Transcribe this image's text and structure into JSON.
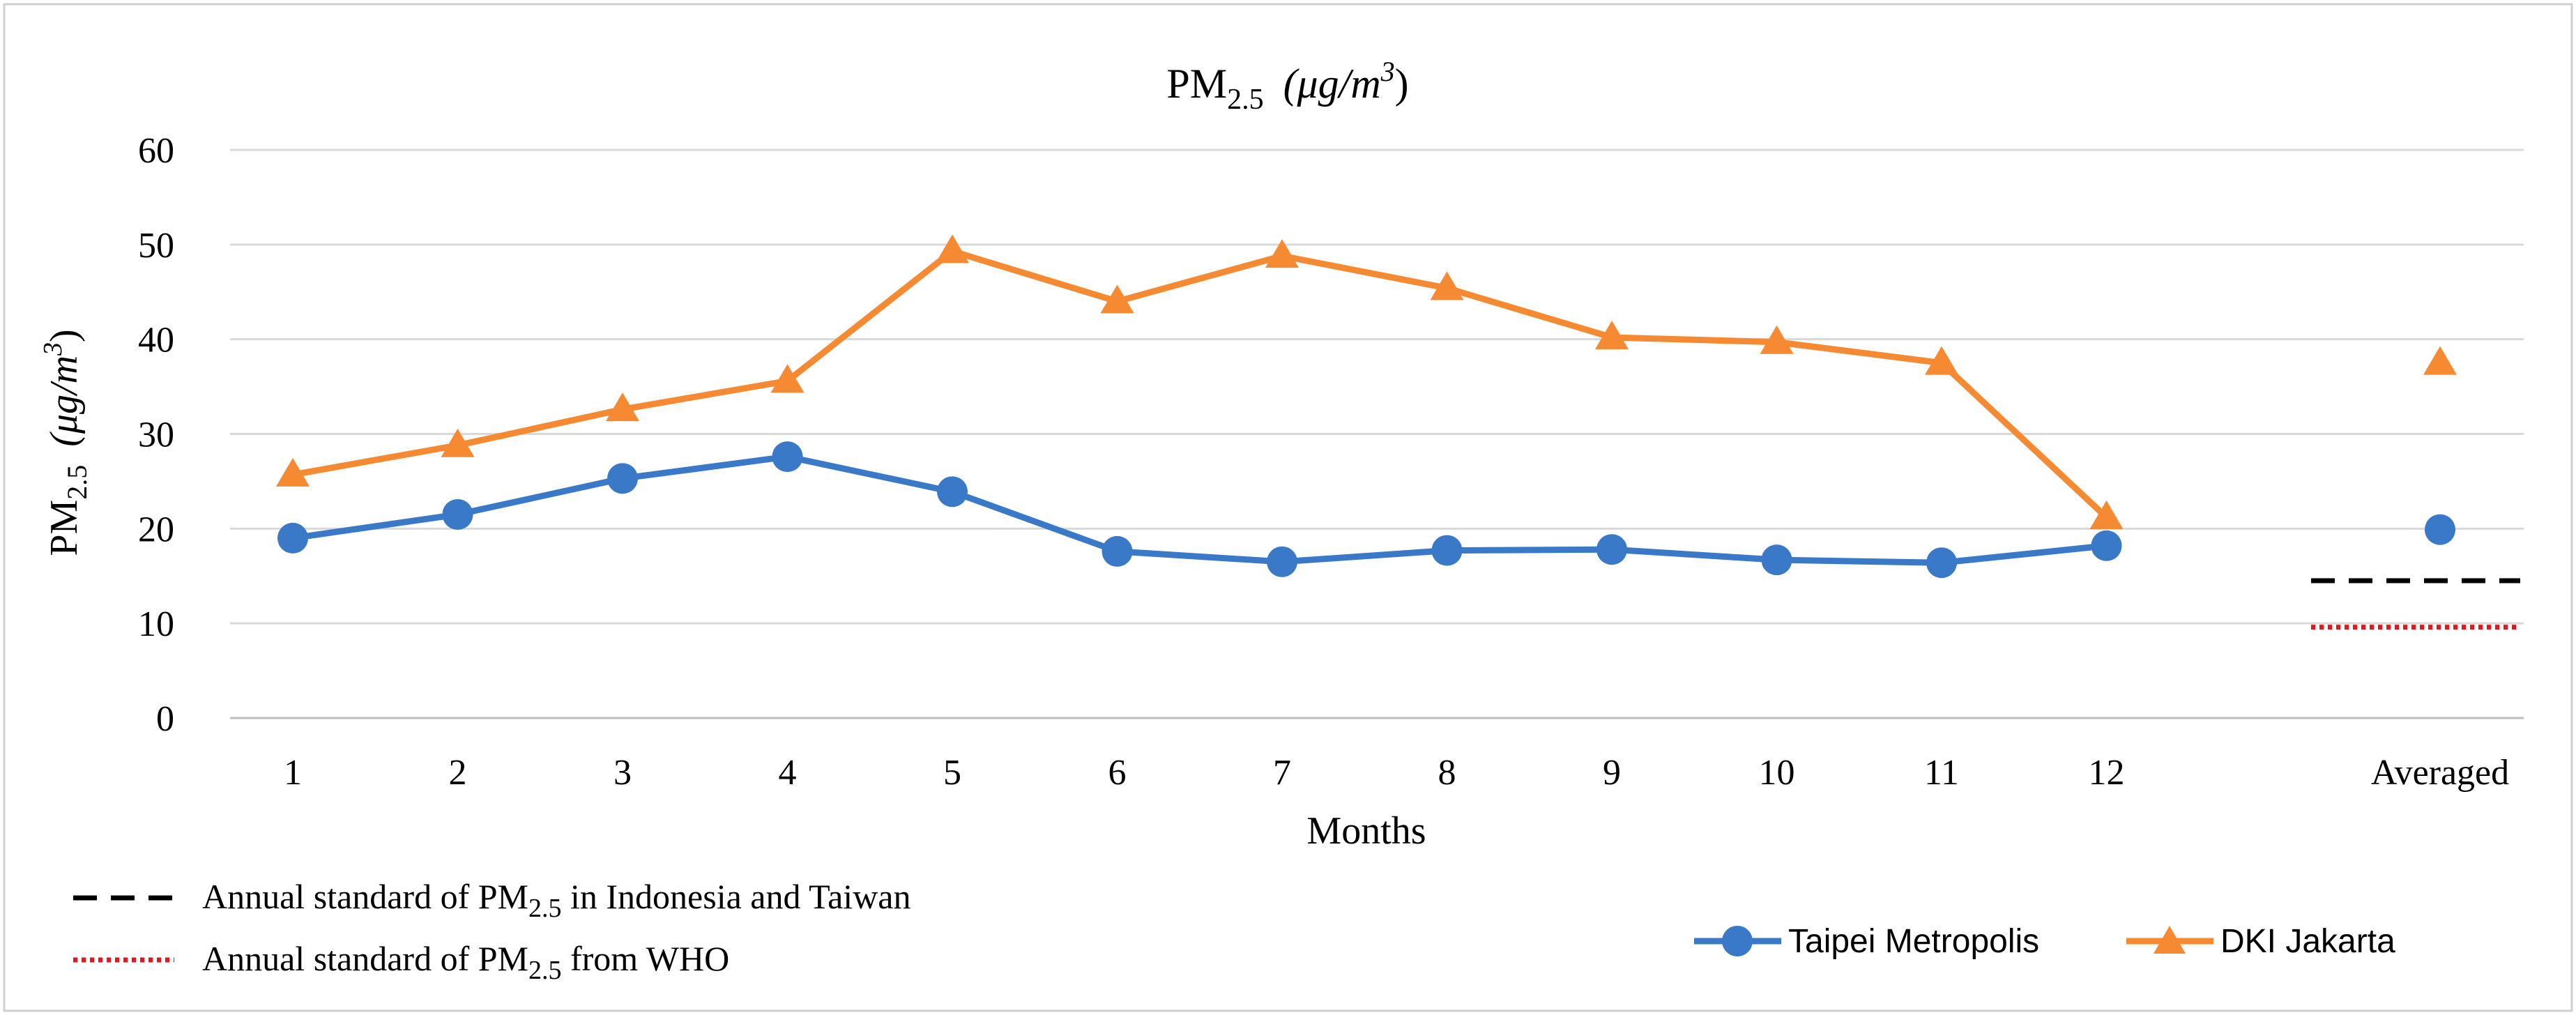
{
  "chart_data": {
    "type": "line",
    "title": "PM",
    "title_sub": "2.5",
    "title_units": "(μg/m",
    "title_units_sup": "3",
    "title_units_close": ")",
    "ylabel": "PM",
    "ylabel_sub": "2.5",
    "ylabel_units": "(μg/m",
    "ylabel_units_sup": "3",
    "ylabel_units_close": ")",
    "xlabel": "Months",
    "ylim": [
      0,
      60
    ],
    "y_ticks": [
      0,
      10,
      20,
      30,
      40,
      50,
      60
    ],
    "grid": true,
    "categories": [
      "1",
      "2",
      "3",
      "4",
      "5",
      "6",
      "7",
      "8",
      "9",
      "10",
      "11",
      "12"
    ],
    "averaged_label": "Averaged",
    "series": [
      {
        "name": "Taipei Metropolis",
        "color": "#3a78c8",
        "marker": "circle",
        "values": [
          19.0,
          21.5,
          25.3,
          27.6,
          23.9,
          17.6,
          16.5,
          17.7,
          17.8,
          16.7,
          16.4,
          18.2
        ],
        "averaged": 19.9
      },
      {
        "name": "DKI Jakarta",
        "color": "#f58a32",
        "marker": "triangle",
        "values": [
          25.7,
          28.8,
          32.6,
          35.6,
          49.3,
          44.0,
          48.8,
          45.4,
          40.2,
          39.7,
          37.5,
          21.2
        ],
        "averaged": 37.5
      }
    ],
    "reference_lines": [
      {
        "id": "indonesia-taiwan",
        "value": 14.5,
        "style": "dashed",
        "color": "#000000",
        "label_pre": "Annual standard of PM",
        "label_sub": "2.5",
        "label_post": " in Indonesia and Taiwan"
      },
      {
        "id": "who",
        "value": 9.6,
        "style": "dotted",
        "color": "#e3161b",
        "label_pre": "Annual standard of PM",
        "label_sub": "2.5",
        "label_post": " from WHO"
      }
    ],
    "legend_position": "bottom-right"
  }
}
